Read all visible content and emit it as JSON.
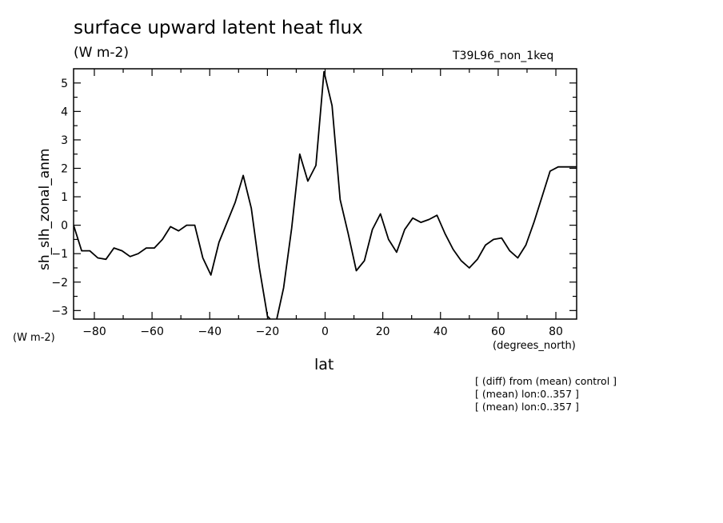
{
  "chart_data": {
    "type": "line",
    "title": "surface upward latent heat flux",
    "units": "(W m-2)",
    "run_label": "T39L96_non_1keq",
    "ylabel": "sh_slh_zonal_anm",
    "y_units": "(W m-2)",
    "xlabel": "lat",
    "x_units": "(degrees_north)",
    "xlim": [
      -87.2,
      87.2
    ],
    "ylim": [
      -3.3,
      5.5
    ],
    "x_ticks": [
      -80,
      -60,
      -40,
      -20,
      0,
      20,
      40,
      60,
      80
    ],
    "y_ticks": [
      -3,
      -2,
      -1,
      0,
      1,
      2,
      3,
      4,
      5
    ],
    "grid": false,
    "notes": [
      "[ (diff) from (mean) control ]",
      "[ (mean) lon:0..357 ]",
      "[ (mean) lon:0..357 ]"
    ],
    "series": [
      {
        "x": [
          -87.2,
          -84.4,
          -81.6,
          -78.8,
          -76.0,
          -73.2,
          -70.4,
          -67.6,
          -64.8,
          -62.0,
          -59.2,
          -56.4,
          -53.6,
          -50.8,
          -48.0,
          -45.2,
          -42.4,
          -39.6,
          -36.8,
          -34.0,
          -31.2,
          -28.4,
          -25.6,
          -22.8,
          -20.0,
          -17.2,
          -14.4,
          -11.6,
          -8.8,
          -6.0,
          -3.2,
          -0.4,
          2.4,
          5.2,
          8.0,
          10.8,
          13.6,
          16.4,
          19.2,
          22.0,
          24.8,
          27.6,
          30.4,
          33.2,
          36.0,
          38.8,
          41.6,
          44.4,
          47.2,
          50.0,
          52.8,
          55.6,
          58.4,
          61.2,
          64.0,
          66.8,
          69.6,
          72.4,
          75.2,
          78.0,
          80.8,
          83.6,
          86.4,
          87.2
        ],
        "y": [
          0.0,
          -0.9,
          -0.9,
          -1.15,
          -1.2,
          -0.8,
          -0.9,
          -1.1,
          -1.0,
          -0.8,
          -0.8,
          -0.5,
          -0.05,
          -0.2,
          0.0,
          0.0,
          -1.15,
          -1.75,
          -0.6,
          0.1,
          0.8,
          1.75,
          0.6,
          -1.5,
          -3.2,
          -3.5,
          -2.2,
          -0.1,
          2.5,
          1.55,
          2.1,
          5.4,
          4.2,
          0.9,
          -0.3,
          -1.6,
          -1.25,
          -0.15,
          0.4,
          -0.5,
          -0.95,
          -0.15,
          0.25,
          0.1,
          0.2,
          0.35,
          -0.3,
          -0.85,
          -1.25,
          -1.5,
          -1.2,
          -0.7,
          -0.5,
          -0.45,
          -0.9,
          -1.15,
          -0.7,
          0.1,
          1.0,
          1.9,
          2.05,
          2.05,
          2.05,
          2.05
        ]
      }
    ]
  }
}
